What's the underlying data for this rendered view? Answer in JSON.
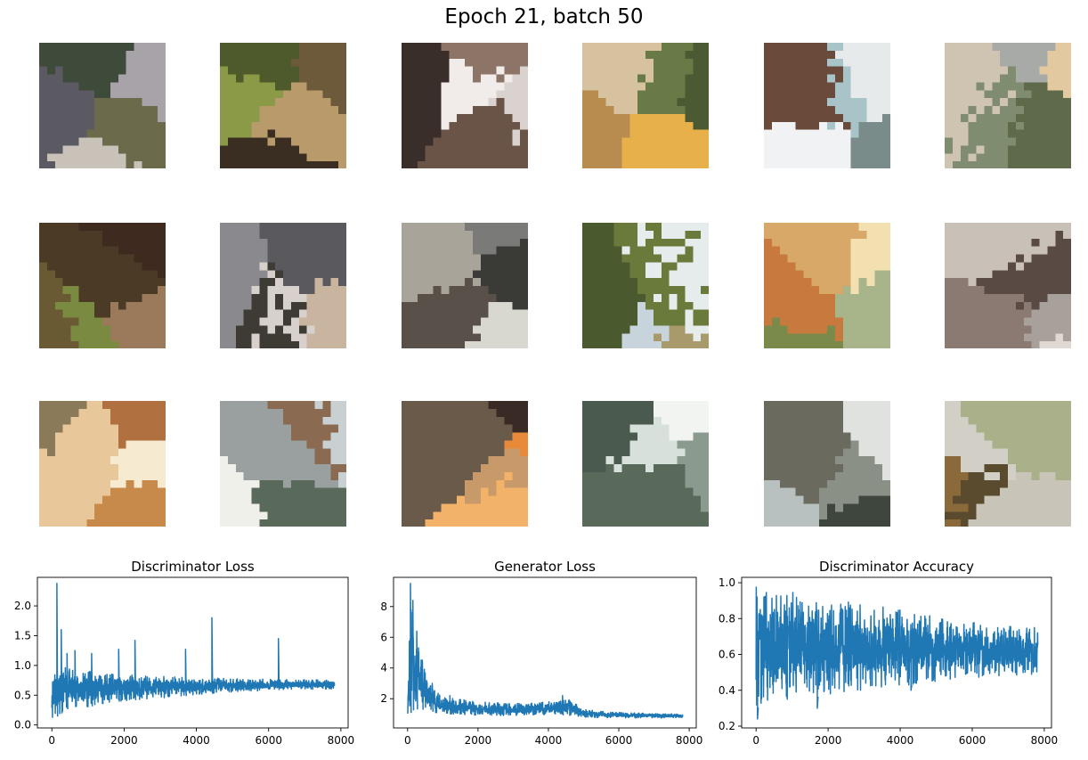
{
  "figure": {
    "suptitle": "Epoch 21, batch 50"
  },
  "samples": [
    {
      "id": 1,
      "colors": [
        "#5b5a63",
        "#a7a3a8",
        "#6b6a4a",
        "#c9c2b8",
        "#3e4a3a"
      ]
    },
    {
      "id": 2,
      "colors": [
        "#6d5a3a",
        "#3a2e22",
        "#8a9a46",
        "#b99a6a",
        "#4e5a2c"
      ]
    },
    {
      "id": 3,
      "colors": [
        "#6a5448",
        "#d9d2cf",
        "#8c7466",
        "#f1ece9",
        "#3a2e2a"
      ]
    },
    {
      "id": 4,
      "colors": [
        "#6a7a46",
        "#d7c2a0",
        "#b88c4e",
        "#e8b04a",
        "#4c5a34"
      ]
    },
    {
      "id": 5,
      "colors": [
        "#f1f2f3",
        "#7a8c8a",
        "#6a4a3a",
        "#a8c4c8",
        "#e6eaea"
      ]
    },
    {
      "id": 6,
      "colors": [
        "#cfc4b2",
        "#7f8c70",
        "#e2c9a0",
        "#a8aaa8",
        "#5e6a4a"
      ]
    },
    {
      "id": 7,
      "colors": [
        "#6a5a34",
        "#3e2a1e",
        "#7a8a40",
        "#9a7a5a",
        "#4a3a26"
      ]
    },
    {
      "id": 8,
      "colors": [
        "#8a8a8e",
        "#3e3a34",
        "#c9b4a0",
        "#5a5a5e",
        "#d8d0cc"
      ]
    },
    {
      "id": 9,
      "colors": [
        "#7a7a78",
        "#3a3a36",
        "#a8a49a",
        "#d8d8d0",
        "#5a504a"
      ]
    },
    {
      "id": 10,
      "colors": [
        "#6a7a3a",
        "#c8d4dc",
        "#a89a6a",
        "#e6ecec",
        "#4a5a2e"
      ]
    },
    {
      "id": 11,
      "colors": [
        "#d8a868",
        "#a8b48a",
        "#c87a3e",
        "#f2e0b0",
        "#7a8a4a"
      ]
    },
    {
      "id": 12,
      "colors": [
        "#8a7a72",
        "#c9c0b8",
        "#5a4a44",
        "#a8a09a",
        "#e0d8d2"
      ]
    },
    {
      "id": 13,
      "colors": [
        "#e8c89a",
        "#c88a4a",
        "#8a7a5a",
        "#f6ead0",
        "#b07040"
      ]
    },
    {
      "id": 14,
      "colors": [
        "#f0f0ea",
        "#9aa0a0",
        "#5a6a5a",
        "#c8d0d2",
        "#8a6a50"
      ]
    },
    {
      "id": 15,
      "colors": [
        "#e88a3a",
        "#3a2a26",
        "#c89a6a",
        "#f2b26a",
        "#6a5a4a"
      ]
    },
    {
      "id": 16,
      "colors": [
        "#f2f4f2",
        "#5a6a5a",
        "#4a5a4e",
        "#8a9a8e",
        "#d8e0dc"
      ]
    },
    {
      "id": 17,
      "colors": [
        "#8a9086",
        "#e0e2e0",
        "#3e463e",
        "#b8c0c0",
        "#6a6a5e"
      ]
    },
    {
      "id": 18,
      "colors": [
        "#aab08a",
        "#c8c4b8",
        "#5a4a2e",
        "#8a6a3a",
        "#d2d0c6"
      ]
    }
  ],
  "chart_data": [
    {
      "type": "line",
      "title": "Discriminator Loss",
      "xlabel": "",
      "ylabel": "",
      "xlim": [
        -400,
        8200
      ],
      "ylim": [
        -0.05,
        2.48
      ],
      "xticks": [
        0,
        2000,
        4000,
        6000,
        8000
      ],
      "yticks": [
        0.0,
        0.5,
        1.0,
        1.5,
        2.0,
        2.5
      ],
      "ytick_labels": [
        "0.0",
        "0.5",
        "1.0",
        "1.5",
        "2.0",
        ""
      ],
      "grid": false,
      "color": "#1f77b4",
      "band": [
        [
          0,
          0.08,
          1.0
        ],
        [
          500,
          0.3,
          0.95
        ],
        [
          1000,
          0.3,
          0.9
        ],
        [
          1500,
          0.37,
          0.87
        ],
        [
          2000,
          0.4,
          0.85
        ],
        [
          3000,
          0.45,
          0.82
        ],
        [
          4000,
          0.5,
          0.8
        ],
        [
          5000,
          0.55,
          0.78
        ],
        [
          6000,
          0.58,
          0.77
        ],
        [
          7000,
          0.6,
          0.76
        ],
        [
          7800,
          0.6,
          0.76
        ]
      ],
      "spikes": [
        [
          140,
          2.38
        ],
        [
          260,
          1.6
        ],
        [
          420,
          1.2
        ],
        [
          640,
          1.25
        ],
        [
          1100,
          1.2
        ],
        [
          1850,
          1.27
        ],
        [
          2300,
          1.42
        ],
        [
          3700,
          1.27
        ],
        [
          4430,
          1.8
        ],
        [
          6270,
          1.45
        ]
      ],
      "x_max": 7820
    },
    {
      "type": "line",
      "title": "Generator Loss",
      "xlabel": "",
      "ylabel": "",
      "xlim": [
        -400,
        8200
      ],
      "ylim": [
        0.1,
        9.9
      ],
      "xticks": [
        0,
        2000,
        4000,
        6000,
        8000
      ],
      "yticks": [
        2,
        4,
        6,
        8
      ],
      "ytick_labels": [
        "2",
        "4",
        "6",
        "8"
      ],
      "grid": false,
      "color": "#1f77b4",
      "band": [
        [
          0,
          0.6,
          2.5
        ],
        [
          100,
          1.2,
          9.5
        ],
        [
          200,
          1.3,
          6.4
        ],
        [
          400,
          1.3,
          4.5
        ],
        [
          600,
          1.2,
          3.0
        ],
        [
          1000,
          1.0,
          2.1
        ],
        [
          2000,
          0.9,
          1.8
        ],
        [
          3000,
          0.9,
          1.7
        ],
        [
          4000,
          0.95,
          1.8
        ],
        [
          4600,
          0.9,
          2.0
        ],
        [
          5000,
          0.8,
          1.3
        ],
        [
          6000,
          0.75,
          1.1
        ],
        [
          7000,
          0.75,
          1.05
        ],
        [
          7800,
          0.75,
          1.0
        ]
      ],
      "spikes": [
        [
          80,
          9.5
        ],
        [
          150,
          8.4
        ],
        [
          260,
          6.4
        ],
        [
          420,
          4.5
        ],
        [
          700,
          3.0
        ],
        [
          1200,
          2.2
        ],
        [
          4400,
          2.2
        ]
      ],
      "x_max": 7820
    },
    {
      "type": "line",
      "title": "Discriminator Accuracy",
      "xlabel": "",
      "ylabel": "",
      "xlim": [
        -400,
        8200
      ],
      "ylim": [
        0.19,
        1.03
      ],
      "xticks": [
        0,
        2000,
        4000,
        6000,
        8000
      ],
      "yticks": [
        0.2,
        0.4,
        0.6,
        0.8,
        1.0
      ],
      "ytick_labels": [
        "0.2",
        "0.4",
        "0.6",
        "0.8",
        "1.0"
      ],
      "grid": false,
      "color": "#1f77b4",
      "band": [
        [
          0,
          0.3,
          1.0
        ],
        [
          500,
          0.35,
          0.98
        ],
        [
          1000,
          0.35,
          0.95
        ],
        [
          2000,
          0.37,
          0.92
        ],
        [
          3000,
          0.4,
          0.88
        ],
        [
          4000,
          0.42,
          0.86
        ],
        [
          5000,
          0.45,
          0.82
        ],
        [
          6000,
          0.47,
          0.78
        ],
        [
          7000,
          0.48,
          0.76
        ],
        [
          7800,
          0.48,
          0.75
        ]
      ],
      "spikes": [
        [
          40,
          0.24
        ],
        [
          1700,
          0.3
        ],
        [
          4300,
          0.4
        ]
      ],
      "x_max": 7820
    }
  ]
}
